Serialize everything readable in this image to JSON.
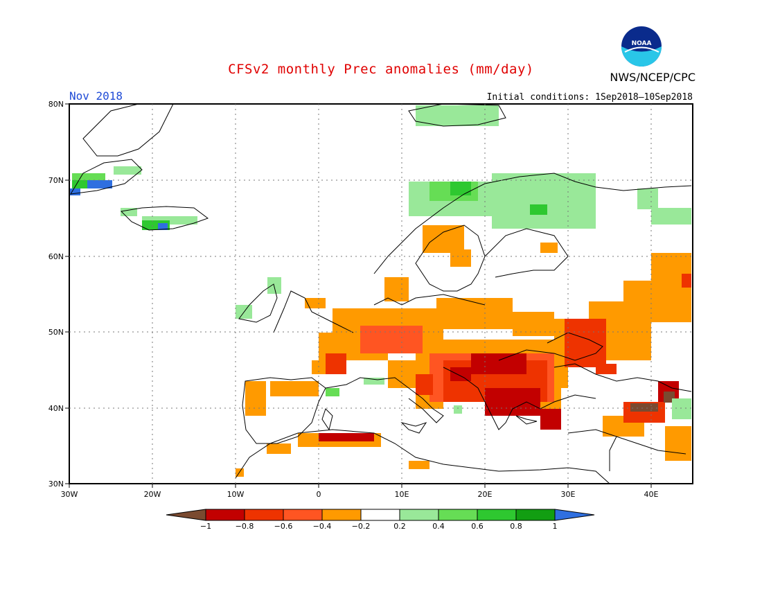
{
  "header": {
    "title": "CFSv2 monthly Prec anomalies (mm/day)",
    "agency": "NWS/NCEP/CPC",
    "logo_text": "NOAA",
    "valid_month": "Nov 2018",
    "initial_conditions": "Initial conditions: 1Sep2018–10Sep2018"
  },
  "map": {
    "lon_range": [
      -30,
      45
    ],
    "lat_range": [
      30,
      80
    ],
    "lat_ticks": [
      "30N",
      "40N",
      "50N",
      "60N",
      "70N",
      "80N"
    ],
    "lon_ticks": [
      "30W",
      "20W",
      "10W",
      "0",
      "10E",
      "20E",
      "30E",
      "40E"
    ],
    "grid": true
  },
  "colorbar": {
    "ticks": [
      "−1",
      "−0.8",
      "−0.6",
      "−0.4",
      "−0.2",
      "0.2",
      "0.4",
      "0.6",
      "0.8",
      "1"
    ],
    "colors": [
      "#7a4a30",
      "#c20000",
      "#ee3300",
      "#ff5522",
      "#ff9a00",
      "#ffffff",
      "#99e899",
      "#66dd55",
      "#2ec830",
      "#129e12",
      "#2f6fe0"
    ]
  }
}
